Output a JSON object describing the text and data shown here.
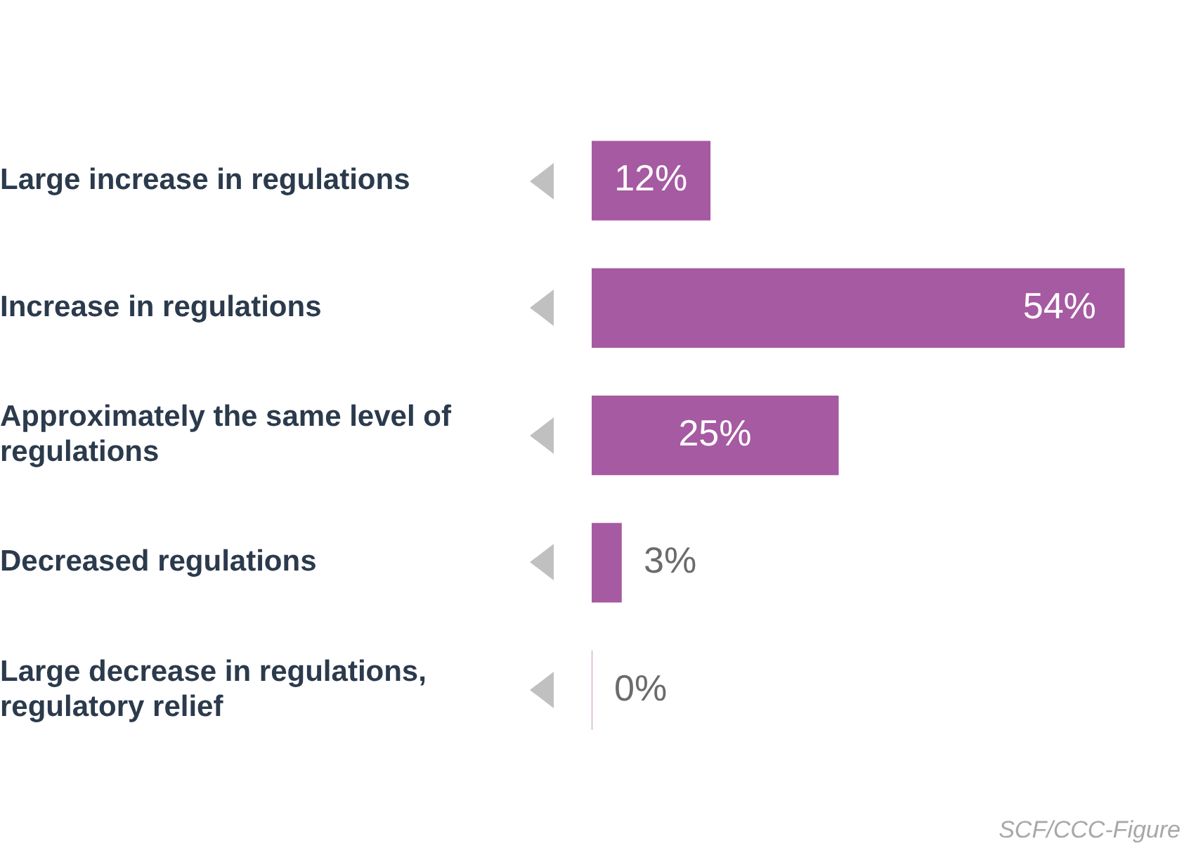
{
  "chart_data": {
    "type": "bar",
    "orientation": "horizontal",
    "categories": [
      "Large increase in regulations",
      "Increase in regulations",
      "Approximately the same level of regulations",
      "Decreased regulations",
      "Large decrease in regulations, regulatory relief"
    ],
    "values": [
      12,
      54,
      25,
      3,
      0
    ],
    "color": "#a65aa2",
    "value_labels": [
      "12%",
      "54%",
      "25%",
      "3%",
      "0%"
    ],
    "annotations": [
      "SCF/CCC-Figure"
    ]
  }
}
